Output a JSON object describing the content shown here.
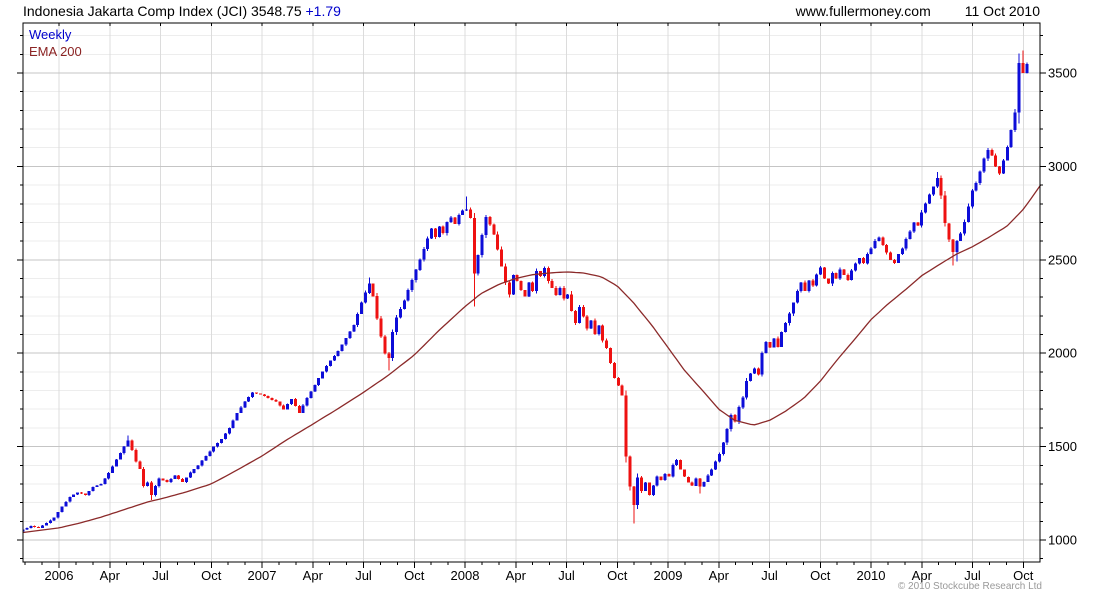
{
  "header": {
    "title": "Indonesia Jakarta Comp Index (JCI)",
    "last_price": "3548.75",
    "change": "+1.79",
    "website": "www.fullermoney.com",
    "date": "11 Oct 2010"
  },
  "legend": {
    "series1": "Weekly",
    "series2": "EMA 200"
  },
  "footer": {
    "copyright": "© 2010 Stockcube Research Ltd"
  },
  "colors": {
    "up": "#0d0dd8",
    "down": "#ee1111",
    "ema": "#8b2a2a",
    "legend_weekly": "#0000cc",
    "legend_ema": "#8b2323",
    "change_text": "#0000cc",
    "grid_minor": "#ededed",
    "grid_major": "#c5c5c5",
    "grid_vertical": "#dcdcdc",
    "axis": "#000000",
    "copyright": "#999999"
  },
  "chart_data": {
    "type": "candlestick",
    "timeframe": "weekly",
    "title": "Indonesia Jakarta Comp Index (JCI)",
    "indicator": "EMA 200",
    "last_close": 3548.75,
    "x_range": {
      "start_year_frac": 2005.823,
      "end_year_frac": 2010.767,
      "weeks": 259
    },
    "ylim": [
      880,
      3770
    ],
    "y_axis": {
      "ticks": [
        1000,
        1500,
        2000,
        2500,
        3000,
        3500
      ],
      "minor_step": 100
    },
    "x_axis": {
      "ticks": [
        {
          "y": 2006.0,
          "label": "2006"
        },
        {
          "y": 2006.25,
          "label": "Apr"
        },
        {
          "y": 2006.5,
          "label": "Jul"
        },
        {
          "y": 2006.75,
          "label": "Oct"
        },
        {
          "y": 2007.0,
          "label": "2007"
        },
        {
          "y": 2007.25,
          "label": "Apr"
        },
        {
          "y": 2007.5,
          "label": "Jul"
        },
        {
          "y": 2007.75,
          "label": "Oct"
        },
        {
          "y": 2008.0,
          "label": "2008"
        },
        {
          "y": 2008.25,
          "label": "Apr"
        },
        {
          "y": 2008.5,
          "label": "Jul"
        },
        {
          "y": 2008.75,
          "label": "Oct"
        },
        {
          "y": 2009.0,
          "label": "2009"
        },
        {
          "y": 2009.25,
          "label": "Apr"
        },
        {
          "y": 2009.5,
          "label": "Jul"
        },
        {
          "y": 2009.75,
          "label": "Oct"
        },
        {
          "y": 2010.0,
          "label": "2010"
        },
        {
          "y": 2010.25,
          "label": "Apr"
        },
        {
          "y": 2010.5,
          "label": "Jul"
        },
        {
          "y": 2010.75,
          "label": "Oct"
        }
      ]
    },
    "open_start": 1045,
    "close_anchors": [
      [
        2005.823,
        1055
      ],
      [
        2005.861,
        1075
      ],
      [
        2005.9,
        1065
      ],
      [
        2005.938,
        1090
      ],
      [
        2005.976,
        1120
      ],
      [
        2006.015,
        1180
      ],
      [
        2006.053,
        1230
      ],
      [
        2006.092,
        1255
      ],
      [
        2006.13,
        1240
      ],
      [
        2006.168,
        1285
      ],
      [
        2006.207,
        1300
      ],
      [
        2006.245,
        1360
      ],
      [
        2006.283,
        1430
      ],
      [
        2006.321,
        1500
      ],
      [
        2006.34,
        1535
      ],
      [
        2006.36,
        1480
      ],
      [
        2006.379,
        1420
      ],
      [
        2006.398,
        1380
      ],
      [
        2006.417,
        1290
      ],
      [
        2006.436,
        1310
      ],
      [
        2006.455,
        1240
      ],
      [
        2006.475,
        1290
      ],
      [
        2006.494,
        1330
      ],
      [
        2006.532,
        1310
      ],
      [
        2006.57,
        1345
      ],
      [
        2006.609,
        1310
      ],
      [
        2006.647,
        1360
      ],
      [
        2006.686,
        1400
      ],
      [
        2006.724,
        1450
      ],
      [
        2006.762,
        1500
      ],
      [
        2006.8,
        1540
      ],
      [
        2006.839,
        1600
      ],
      [
        2006.877,
        1680
      ],
      [
        2006.915,
        1740
      ],
      [
        2006.954,
        1790
      ],
      [
        2006.992,
        1780
      ],
      [
        2007.03,
        1760
      ],
      [
        2007.069,
        1740
      ],
      [
        2007.107,
        1700
      ],
      [
        2007.145,
        1755
      ],
      [
        2007.184,
        1680
      ],
      [
        2007.222,
        1760
      ],
      [
        2007.26,
        1830
      ],
      [
        2007.298,
        1900
      ],
      [
        2007.337,
        1960
      ],
      [
        2007.375,
        2010
      ],
      [
        2007.413,
        2080
      ],
      [
        2007.452,
        2150
      ],
      [
        2007.49,
        2270
      ],
      [
        2007.528,
        2375
      ],
      [
        2007.547,
        2310
      ],
      [
        2007.566,
        2190
      ],
      [
        2007.586,
        2090
      ],
      [
        2007.605,
        2000
      ],
      [
        2007.624,
        1970
      ],
      [
        2007.643,
        2110
      ],
      [
        2007.662,
        2190
      ],
      [
        2007.7,
        2280
      ],
      [
        2007.739,
        2390
      ],
      [
        2007.777,
        2500
      ],
      [
        2007.815,
        2610
      ],
      [
        2007.834,
        2670
      ],
      [
        2007.854,
        2620
      ],
      [
        2007.873,
        2680
      ],
      [
        2007.892,
        2640
      ],
      [
        2007.911,
        2700
      ],
      [
        2007.93,
        2730
      ],
      [
        2007.949,
        2690
      ],
      [
        2007.969,
        2740
      ],
      [
        2007.988,
        2765
      ],
      [
        2008.007,
        2770
      ],
      [
        2008.026,
        2740
      ],
      [
        2008.045,
        2420
      ],
      [
        2008.064,
        2520
      ],
      [
        2008.084,
        2630
      ],
      [
        2008.103,
        2730
      ],
      [
        2008.122,
        2690
      ],
      [
        2008.141,
        2640
      ],
      [
        2008.16,
        2560
      ],
      [
        2008.179,
        2470
      ],
      [
        2008.199,
        2380
      ],
      [
        2008.218,
        2310
      ],
      [
        2008.237,
        2420
      ],
      [
        2008.256,
        2390
      ],
      [
        2008.275,
        2340
      ],
      [
        2008.294,
        2300
      ],
      [
        2008.314,
        2380
      ],
      [
        2008.333,
        2330
      ],
      [
        2008.352,
        2440
      ],
      [
        2008.371,
        2410
      ],
      [
        2008.39,
        2460
      ],
      [
        2008.409,
        2390
      ],
      [
        2008.429,
        2350
      ],
      [
        2008.448,
        2310
      ],
      [
        2008.467,
        2350
      ],
      [
        2008.486,
        2290
      ],
      [
        2008.505,
        2320
      ],
      [
        2008.524,
        2230
      ],
      [
        2008.544,
        2160
      ],
      [
        2008.563,
        2250
      ],
      [
        2008.582,
        2200
      ],
      [
        2008.601,
        2130
      ],
      [
        2008.62,
        2180
      ],
      [
        2008.639,
        2100
      ],
      [
        2008.659,
        2150
      ],
      [
        2008.678,
        2070
      ],
      [
        2008.697,
        2030
      ],
      [
        2008.716,
        1950
      ],
      [
        2008.735,
        1870
      ],
      [
        2008.754,
        1830
      ],
      [
        2008.774,
        1780
      ],
      [
        2008.793,
        1450
      ],
      [
        2008.812,
        1290
      ],
      [
        2008.831,
        1180
      ],
      [
        2008.85,
        1340
      ],
      [
        2008.869,
        1260
      ],
      [
        2008.889,
        1310
      ],
      [
        2008.908,
        1240
      ],
      [
        2008.927,
        1290
      ],
      [
        2008.946,
        1340
      ],
      [
        2008.965,
        1320
      ],
      [
        2008.984,
        1355
      ],
      [
        2009.004,
        1340
      ],
      [
        2009.023,
        1400
      ],
      [
        2009.042,
        1430
      ],
      [
        2009.061,
        1380
      ],
      [
        2009.08,
        1340
      ],
      [
        2009.099,
        1310
      ],
      [
        2009.119,
        1290
      ],
      [
        2009.138,
        1330
      ],
      [
        2009.157,
        1285
      ],
      [
        2009.176,
        1310
      ],
      [
        2009.195,
        1345
      ],
      [
        2009.214,
        1375
      ],
      [
        2009.234,
        1420
      ],
      [
        2009.253,
        1460
      ],
      [
        2009.272,
        1520
      ],
      [
        2009.291,
        1590
      ],
      [
        2009.31,
        1670
      ],
      [
        2009.329,
        1630
      ],
      [
        2009.349,
        1710
      ],
      [
        2009.368,
        1760
      ],
      [
        2009.387,
        1850
      ],
      [
        2009.406,
        1890
      ],
      [
        2009.425,
        1920
      ],
      [
        2009.444,
        1880
      ],
      [
        2009.464,
        2000
      ],
      [
        2009.483,
        2060
      ],
      [
        2009.502,
        2030
      ],
      [
        2009.521,
        2080
      ],
      [
        2009.54,
        2030
      ],
      [
        2009.559,
        2110
      ],
      [
        2009.579,
        2160
      ],
      [
        2009.598,
        2210
      ],
      [
        2009.617,
        2270
      ],
      [
        2009.636,
        2330
      ],
      [
        2009.655,
        2380
      ],
      [
        2009.674,
        2330
      ],
      [
        2009.694,
        2390
      ],
      [
        2009.713,
        2360
      ],
      [
        2009.732,
        2420
      ],
      [
        2009.751,
        2460
      ],
      [
        2009.77,
        2400
      ],
      [
        2009.789,
        2370
      ],
      [
        2009.809,
        2430
      ],
      [
        2009.828,
        2400
      ],
      [
        2009.847,
        2450
      ],
      [
        2009.866,
        2420
      ],
      [
        2009.885,
        2390
      ],
      [
        2009.904,
        2440
      ],
      [
        2009.924,
        2480
      ],
      [
        2009.943,
        2510
      ],
      [
        2009.962,
        2480
      ],
      [
        2009.981,
        2530
      ],
      [
        2010.0,
        2560
      ],
      [
        2010.019,
        2600
      ],
      [
        2010.039,
        2620
      ],
      [
        2010.058,
        2580
      ],
      [
        2010.077,
        2540
      ],
      [
        2010.096,
        2500
      ],
      [
        2010.115,
        2480
      ],
      [
        2010.134,
        2530
      ],
      [
        2010.154,
        2560
      ],
      [
        2010.173,
        2610
      ],
      [
        2010.192,
        2650
      ],
      [
        2010.211,
        2700
      ],
      [
        2010.23,
        2680
      ],
      [
        2010.249,
        2750
      ],
      [
        2010.269,
        2800
      ],
      [
        2010.288,
        2850
      ],
      [
        2010.307,
        2890
      ],
      [
        2010.326,
        2940
      ],
      [
        2010.345,
        2850
      ],
      [
        2010.364,
        2700
      ],
      [
        2010.384,
        2610
      ],
      [
        2010.403,
        2540
      ],
      [
        2010.422,
        2600
      ],
      [
        2010.441,
        2640
      ],
      [
        2010.46,
        2700
      ],
      [
        2010.479,
        2780
      ],
      [
        2010.499,
        2870
      ],
      [
        2010.518,
        2910
      ],
      [
        2010.537,
        2970
      ],
      [
        2010.556,
        3040
      ],
      [
        2010.575,
        3090
      ],
      [
        2010.594,
        3060
      ],
      [
        2010.614,
        3000
      ],
      [
        2010.633,
        2960
      ],
      [
        2010.652,
        3030
      ],
      [
        2010.671,
        3100
      ],
      [
        2010.69,
        3190
      ],
      [
        2010.71,
        3290
      ],
      [
        2010.729,
        3555
      ],
      [
        2010.748,
        3500
      ],
      [
        2010.767,
        3548.75
      ]
    ],
    "wick_events": [
      {
        "year": 2006.34,
        "high": 1560
      },
      {
        "year": 2006.455,
        "low": 1215
      },
      {
        "year": 2007.528,
        "high": 2405
      },
      {
        "year": 2007.624,
        "low": 1908
      },
      {
        "year": 2008.007,
        "high": 2838
      },
      {
        "year": 2008.045,
        "low": 2250
      },
      {
        "year": 2008.831,
        "low": 1089
      },
      {
        "year": 2009.157,
        "low": 1250
      },
      {
        "year": 2010.326,
        "high": 2971
      },
      {
        "year": 2010.403,
        "low": 2470
      },
      {
        "year": 2010.422,
        "low": 2490
      },
      {
        "year": 2010.748,
        "high": 3620
      }
    ],
    "ema_anchors": [
      [
        2005.823,
        1040
      ],
      [
        2006.0,
        1065
      ],
      [
        2006.1,
        1090
      ],
      [
        2006.2,
        1120
      ],
      [
        2006.3,
        1155
      ],
      [
        2006.44,
        1205
      ],
      [
        2006.5,
        1220
      ],
      [
        2006.62,
        1255
      ],
      [
        2006.75,
        1300
      ],
      [
        2006.87,
        1370
      ],
      [
        2007.0,
        1450
      ],
      [
        2007.12,
        1535
      ],
      [
        2007.25,
        1620
      ],
      [
        2007.37,
        1700
      ],
      [
        2007.5,
        1790
      ],
      [
        2007.62,
        1880
      ],
      [
        2007.75,
        1990
      ],
      [
        2007.87,
        2120
      ],
      [
        2008.0,
        2250
      ],
      [
        2008.08,
        2320
      ],
      [
        2008.17,
        2370
      ],
      [
        2008.25,
        2400
      ],
      [
        2008.33,
        2420
      ],
      [
        2008.42,
        2430
      ],
      [
        2008.5,
        2435
      ],
      [
        2008.58,
        2430
      ],
      [
        2008.67,
        2410
      ],
      [
        2008.75,
        2360
      ],
      [
        2008.83,
        2270
      ],
      [
        2008.92,
        2150
      ],
      [
        2009.0,
        2030
      ],
      [
        2009.08,
        1910
      ],
      [
        2009.17,
        1800
      ],
      [
        2009.25,
        1700
      ],
      [
        2009.33,
        1640
      ],
      [
        2009.42,
        1615
      ],
      [
        2009.5,
        1640
      ],
      [
        2009.58,
        1690
      ],
      [
        2009.67,
        1760
      ],
      [
        2009.75,
        1850
      ],
      [
        2009.83,
        1960
      ],
      [
        2009.92,
        2075
      ],
      [
        2010.0,
        2180
      ],
      [
        2010.08,
        2260
      ],
      [
        2010.17,
        2340
      ],
      [
        2010.25,
        2415
      ],
      [
        2010.33,
        2470
      ],
      [
        2010.42,
        2530
      ],
      [
        2010.5,
        2570
      ],
      [
        2010.58,
        2620
      ],
      [
        2010.67,
        2680
      ],
      [
        2010.75,
        2770
      ],
      [
        2010.79,
        2830
      ],
      [
        2010.835,
        2900
      ]
    ]
  }
}
